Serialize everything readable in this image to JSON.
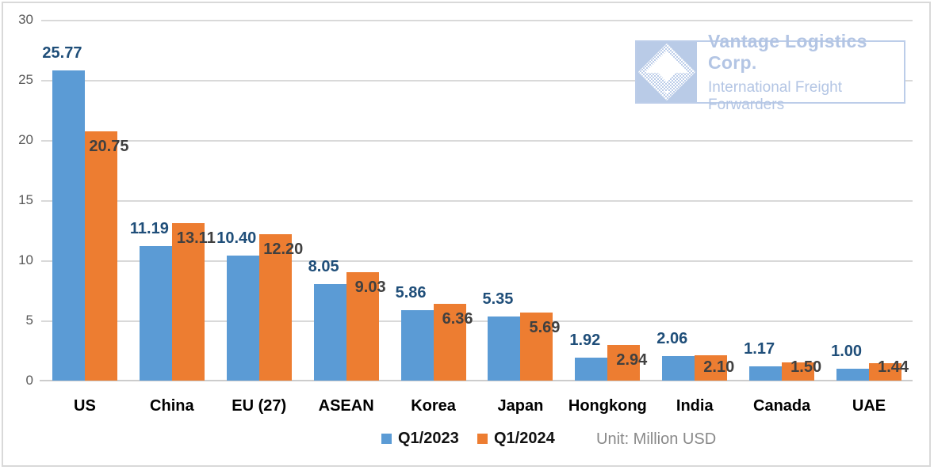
{
  "unit_label": "Unit: Million USD",
  "watermark": {
    "company": "Vantage Logistics Corp.",
    "tagline": "International Freight Forwarders",
    "color": "#b3c5e4",
    "logo_icon": "diamond-halftone-icon"
  },
  "legend": [
    {
      "label": "Q1/2023",
      "color": "#5b9bd5"
    },
    {
      "label": "Q1/2024",
      "color": "#ed7d31"
    }
  ],
  "colors": {
    "series_2023": "#5b9bd5",
    "series_2024": "#ed7d31",
    "label_2023": "#1f4e79",
    "label_2024": "#404040",
    "gridline": "#d9d9d9",
    "tick_text": "#595959",
    "unit_text": "#898989"
  },
  "chart_data": {
    "type": "bar",
    "title": "",
    "xlabel": "",
    "ylabel": "",
    "categories": [
      "US",
      "China",
      "EU (27)",
      "ASEAN",
      "Korea",
      "Japan",
      "Hongkong",
      "India",
      "Canada",
      "UAE"
    ],
    "series": [
      {
        "name": "Q1/2023",
        "color": "#5b9bd5",
        "label_color": "#1f4e79",
        "values": [
          25.77,
          11.19,
          10.4,
          8.05,
          5.86,
          5.35,
          1.92,
          2.06,
          1.17,
          1.0
        ]
      },
      {
        "name": "Q1/2024",
        "color": "#ed7d31",
        "label_color": "#404040",
        "values": [
          20.75,
          13.11,
          12.2,
          9.03,
          6.36,
          5.69,
          2.94,
          2.1,
          1.5,
          1.44
        ]
      }
    ],
    "ylim": [
      0,
      30
    ],
    "yticks": [
      0,
      5,
      10,
      15,
      20,
      25,
      30
    ],
    "grid": true,
    "legend_position": "bottom",
    "value_labels": "two-decimals"
  }
}
